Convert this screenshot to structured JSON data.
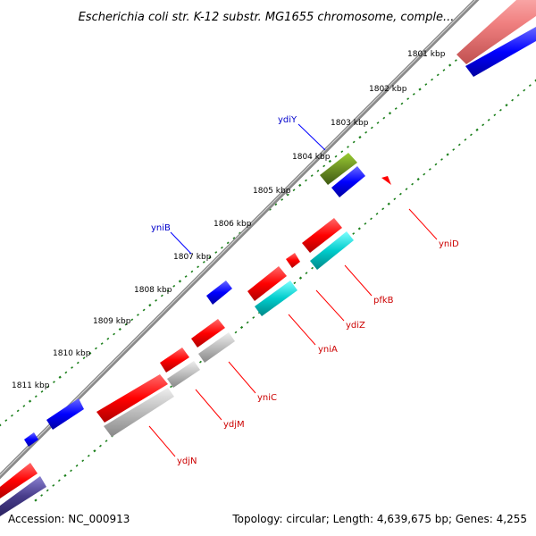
{
  "title": "Escherichia coli str. K-12 substr. MG1655 chromosome, comple...",
  "footer": {
    "accession": "Accession: NC_000913",
    "summary": "Topology: circular; Length: 4,639,675 bp; Genes: 4,255"
  },
  "colors": {
    "dots": "#1b7f1b",
    "backbone": "#888888",
    "gene_forward_red": "#ff0000",
    "gene_blue": "#0000ff",
    "gene_cyan": "#00cccc",
    "gene_gray": "#bbbbbb",
    "gene_olive": "#6b8e23",
    "gene_pink": "#f08080",
    "gene_indigo": "#483d8b",
    "label_blue": "#0000cc",
    "label_red": "#cc0000"
  },
  "ticks": [
    {
      "label": "1801 kbp"
    },
    {
      "label": "1802 kbp"
    },
    {
      "label": "1803 kbp"
    },
    {
      "label": "1804 kbp"
    },
    {
      "label": "1805 kbp"
    },
    {
      "label": "1806 kbp"
    },
    {
      "label": "1807 kbp"
    },
    {
      "label": "1808 kbp"
    },
    {
      "label": "1809 kbp"
    },
    {
      "label": "1810 kbp"
    },
    {
      "label": "1811 kbp"
    }
  ],
  "gene_labels": [
    {
      "name": "ydiY"
    },
    {
      "name": "yniB"
    },
    {
      "name": "yniD"
    },
    {
      "name": "pfkB"
    },
    {
      "name": "ydiZ"
    },
    {
      "name": "yniA"
    },
    {
      "name": "yniC"
    },
    {
      "name": "ydjM"
    },
    {
      "name": "ydjN"
    }
  ]
}
